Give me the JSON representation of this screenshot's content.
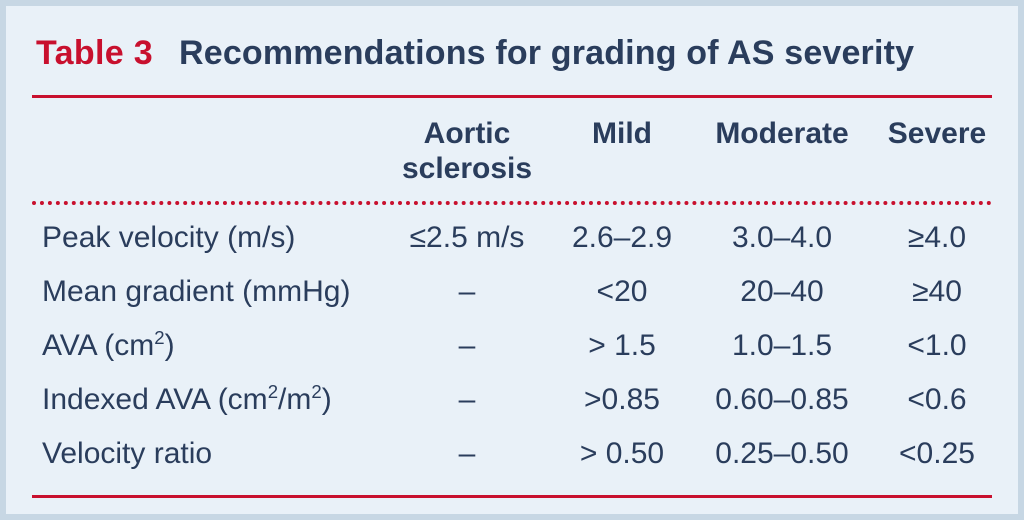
{
  "table": {
    "type": "table",
    "label": "Table 3",
    "caption": "Recommendations for grading of AS severity",
    "layout": {
      "column_template": "350px 170px 140px 180px 130px",
      "background_color": "#e9f1f8",
      "frame_border_color": "#c7d7e4",
      "rule_color": "#c8102e",
      "text_color": "#2a3d5c",
      "accent_color": "#c8102e",
      "header_fontsize_pt": 22,
      "cell_fontsize_pt": 22,
      "title_fontsize_pt": 25,
      "font_family": "Gill Sans / sans-serif"
    },
    "columns": [
      {
        "key": "param",
        "header_html": ""
      },
      {
        "key": "sclerosis",
        "header_html": "Aortic<br>sclerosis"
      },
      {
        "key": "mild",
        "header_html": "Mild"
      },
      {
        "key": "moderate",
        "header_html": "Moderate"
      },
      {
        "key": "severe",
        "header_html": "Severe"
      }
    ],
    "rows": [
      {
        "param_html": "Peak velocity (m/s)",
        "sclerosis": "≤2.5 m/s",
        "mild": "2.6–2.9",
        "moderate": "3.0–4.0",
        "severe": "≥4.0"
      },
      {
        "param_html": "Mean gradient (mmHg)",
        "sclerosis": "–",
        "mild": "<20",
        "moderate": "20–40",
        "severe": "≥40"
      },
      {
        "param_html": "AVA (cm<sup>2</sup>)",
        "sclerosis": "–",
        "mild": "> 1.5",
        "moderate": "1.0–1.5",
        "severe": "<1.0"
      },
      {
        "param_html": "Indexed AVA (cm<sup>2</sup>/m<sup>2</sup>)",
        "sclerosis": "–",
        "mild": ">0.85",
        "moderate": "0.60–0.85",
        "severe": "<0.6"
      },
      {
        "param_html": "Velocity ratio",
        "sclerosis": "–",
        "mild": "> 0.50",
        "moderate": "0.25–0.50",
        "severe": "<0.25"
      }
    ]
  }
}
